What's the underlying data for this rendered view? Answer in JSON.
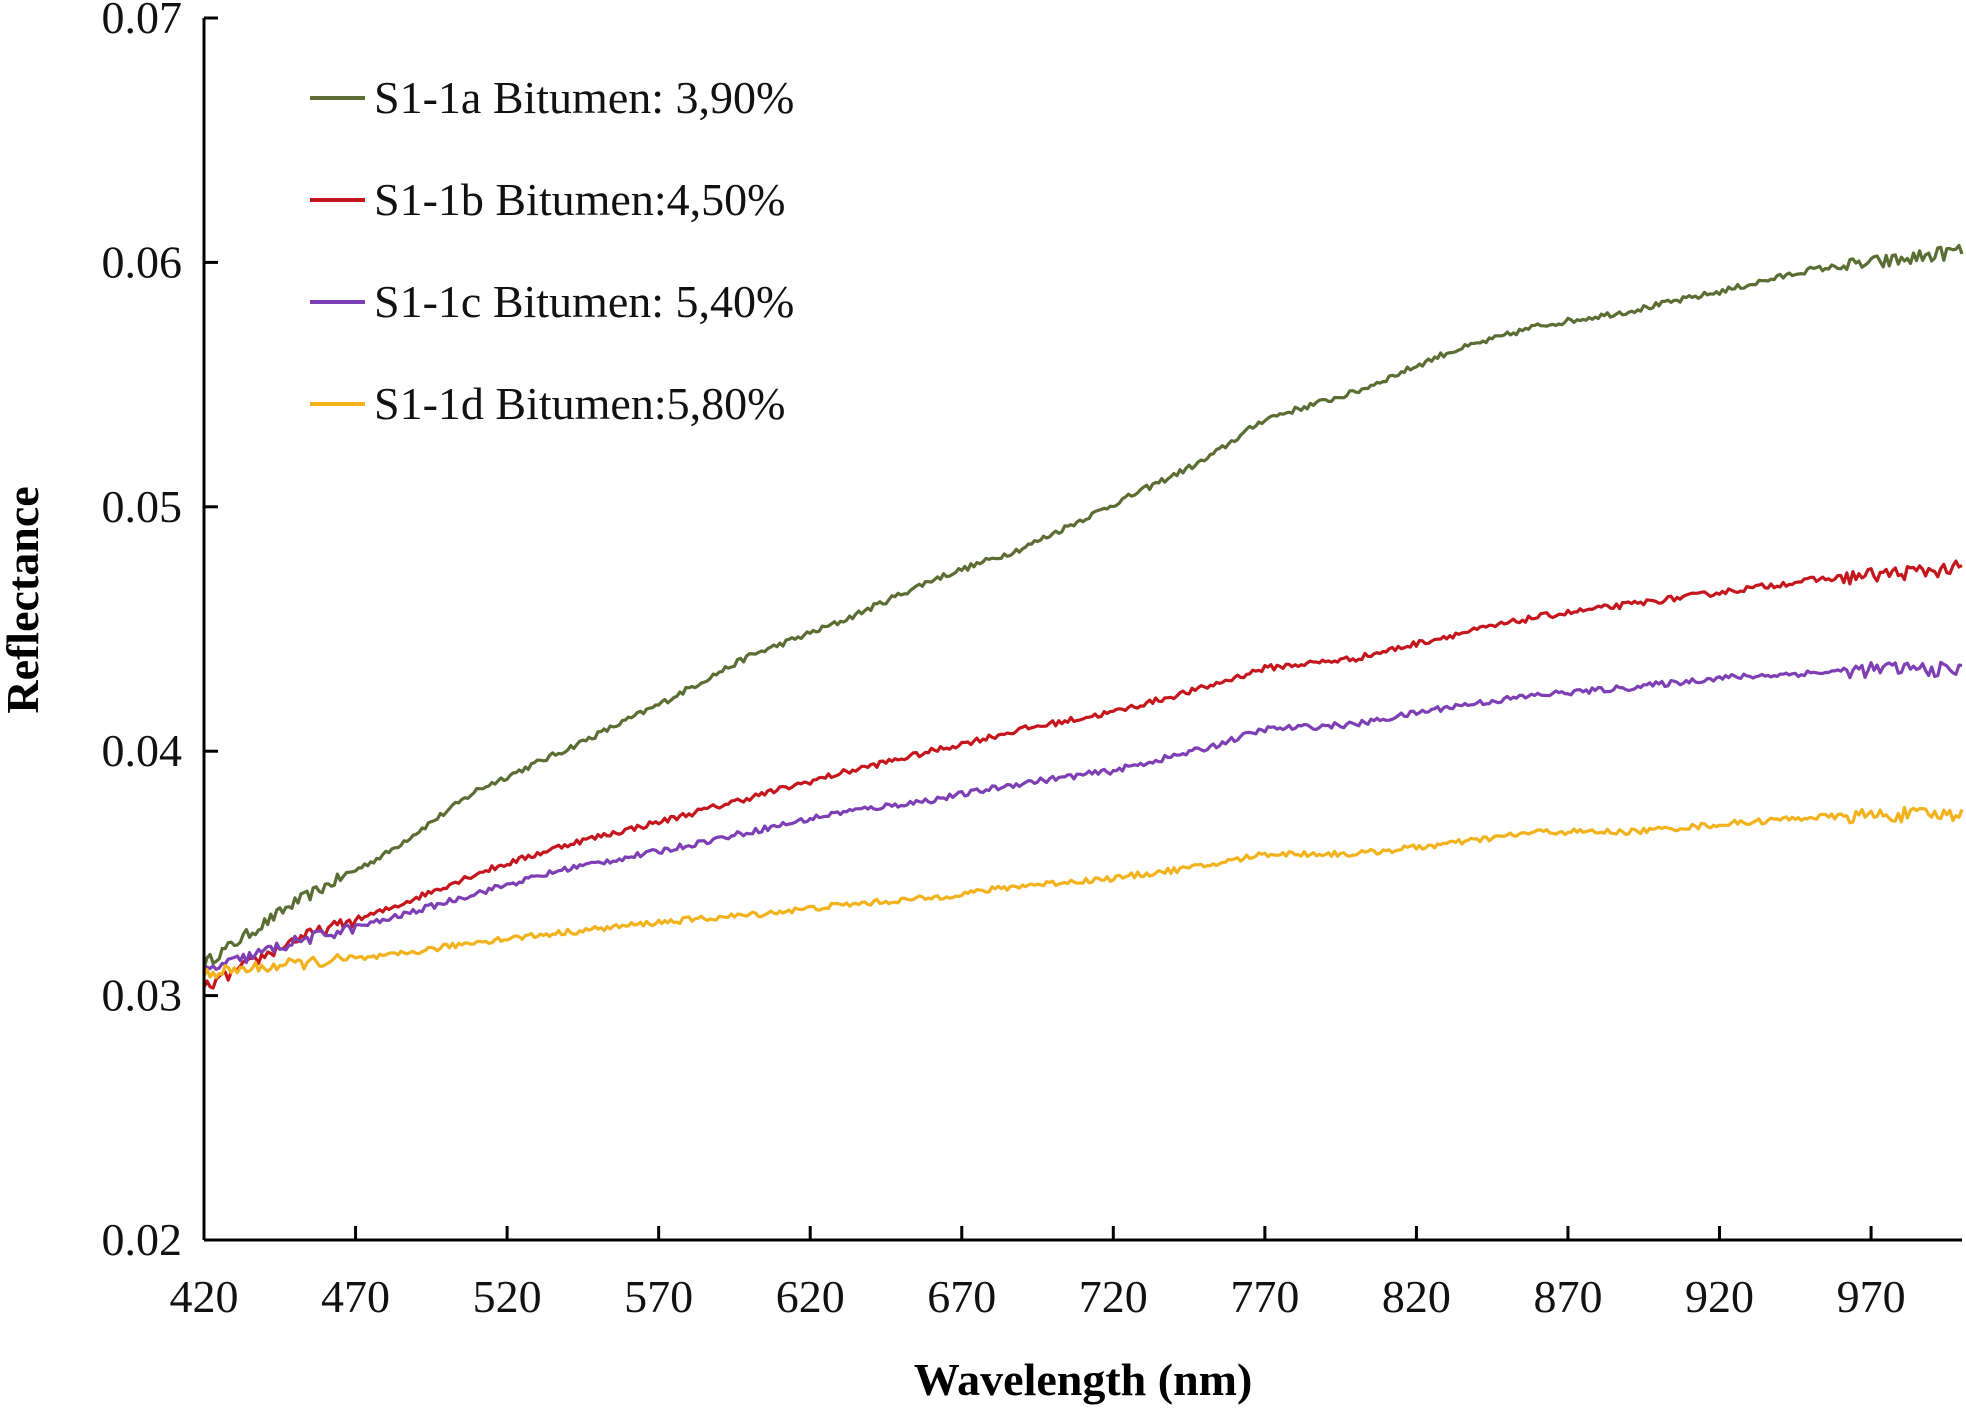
{
  "chart_data": {
    "type": "line",
    "title": "",
    "xlabel": "Wavelength (nm)",
    "ylabel": "Reflectance",
    "xlim": [
      420,
      1000
    ],
    "ylim": [
      0.02,
      0.07
    ],
    "x_ticks": [
      420,
      470,
      520,
      570,
      620,
      670,
      720,
      770,
      820,
      870,
      920,
      970
    ],
    "y_ticks": [
      "0.02",
      "0.03",
      "0.04",
      "0.05",
      "0.06",
      "0.07"
    ],
    "y_tick_values": [
      0.02,
      0.03,
      0.04,
      0.05,
      0.06,
      0.07
    ],
    "grid": false,
    "legend_position": "top-left",
    "x": [
      420,
      450,
      480,
      510,
      540,
      570,
      600,
      630,
      660,
      690,
      720,
      750,
      770,
      800,
      830,
      860,
      890,
      920,
      950,
      980,
      1000
    ],
    "series": [
      {
        "name": "S1-1a Bitumen: 3,90%",
        "color": "#5a6e34",
        "values": [
          0.0313,
          0.0338,
          0.0358,
          0.0384,
          0.0401,
          0.0419,
          0.0439,
          0.0453,
          0.047,
          0.0483,
          0.0501,
          0.0519,
          0.0536,
          0.0547,
          0.0563,
          0.0574,
          0.058,
          0.0588,
          0.0597,
          0.0601,
          0.0605
        ]
      },
      {
        "name": "S1-1b  Bitumen:4,50%",
        "color": "#c4161c",
        "values": [
          0.0303,
          0.0323,
          0.0335,
          0.035,
          0.0362,
          0.0371,
          0.0381,
          0.0391,
          0.04,
          0.0409,
          0.0416,
          0.0426,
          0.0434,
          0.0438,
          0.0447,
          0.0455,
          0.046,
          0.0465,
          0.047,
          0.0473,
          0.0475
        ]
      },
      {
        "name": "S1-1c  Bitumen: 5,40%",
        "color": "#7e3fb4",
        "values": [
          0.031,
          0.0322,
          0.0331,
          0.0342,
          0.0352,
          0.0359,
          0.0367,
          0.0375,
          0.038,
          0.0387,
          0.0392,
          0.0401,
          0.0409,
          0.0411,
          0.0418,
          0.0423,
          0.0426,
          0.043,
          0.0432,
          0.0434,
          0.0433
        ]
      },
      {
        "name": "S1-1d  Bitumen:5,80%",
        "color": "#f2b21b",
        "values": [
          0.0309,
          0.0313,
          0.0316,
          0.0322,
          0.0326,
          0.033,
          0.0333,
          0.0337,
          0.034,
          0.0345,
          0.0348,
          0.0353,
          0.0358,
          0.0358,
          0.0362,
          0.0367,
          0.0367,
          0.037,
          0.0373,
          0.0374,
          0.0374
        ]
      }
    ]
  }
}
